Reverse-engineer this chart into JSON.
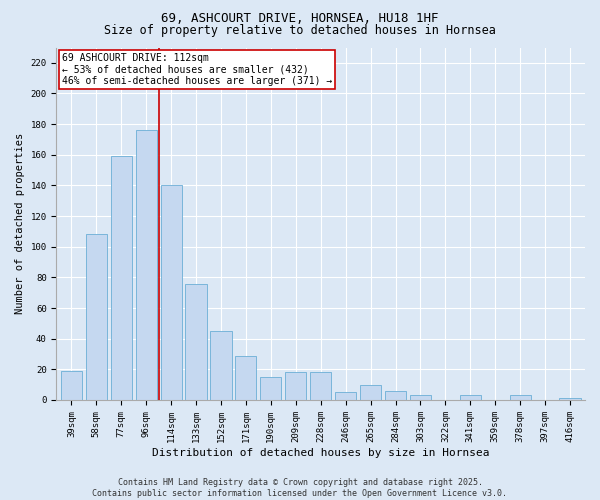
{
  "title": "69, ASHCOURT DRIVE, HORNSEA, HU18 1HF",
  "subtitle": "Size of property relative to detached houses in Hornsea",
  "xlabel": "Distribution of detached houses by size in Hornsea",
  "ylabel": "Number of detached properties",
  "categories": [
    "39sqm",
    "58sqm",
    "77sqm",
    "96sqm",
    "114sqm",
    "133sqm",
    "152sqm",
    "171sqm",
    "190sqm",
    "209sqm",
    "228sqm",
    "246sqm",
    "265sqm",
    "284sqm",
    "303sqm",
    "322sqm",
    "341sqm",
    "359sqm",
    "378sqm",
    "397sqm",
    "416sqm"
  ],
  "values": [
    19,
    108,
    159,
    176,
    140,
    76,
    45,
    29,
    15,
    18,
    18,
    5,
    10,
    6,
    3,
    0,
    3,
    0,
    3,
    0,
    1
  ],
  "bar_color": "#c5d8f0",
  "bar_edge_color": "#6baed6",
  "vline_x": 3.5,
  "vline_color": "#cc0000",
  "annotation_title": "69 ASHCOURT DRIVE: 112sqm",
  "annotation_line1": "← 53% of detached houses are smaller (432)",
  "annotation_line2": "46% of semi-detached houses are larger (371) →",
  "annotation_box_color": "#ffffff",
  "annotation_box_edge": "#cc0000",
  "ylim": [
    0,
    230
  ],
  "yticks": [
    0,
    20,
    40,
    60,
    80,
    100,
    120,
    140,
    160,
    180,
    200,
    220
  ],
  "background_color": "#dce8f5",
  "plot_bg_color": "#dce8f5",
  "grid_color": "#ffffff",
  "footer": "Contains HM Land Registry data © Crown copyright and database right 2025.\nContains public sector information licensed under the Open Government Licence v3.0.",
  "title_fontsize": 9,
  "subtitle_fontsize": 8.5,
  "xlabel_fontsize": 8,
  "ylabel_fontsize": 7.5,
  "tick_fontsize": 6.5,
  "annotation_fontsize": 7,
  "footer_fontsize": 6
}
